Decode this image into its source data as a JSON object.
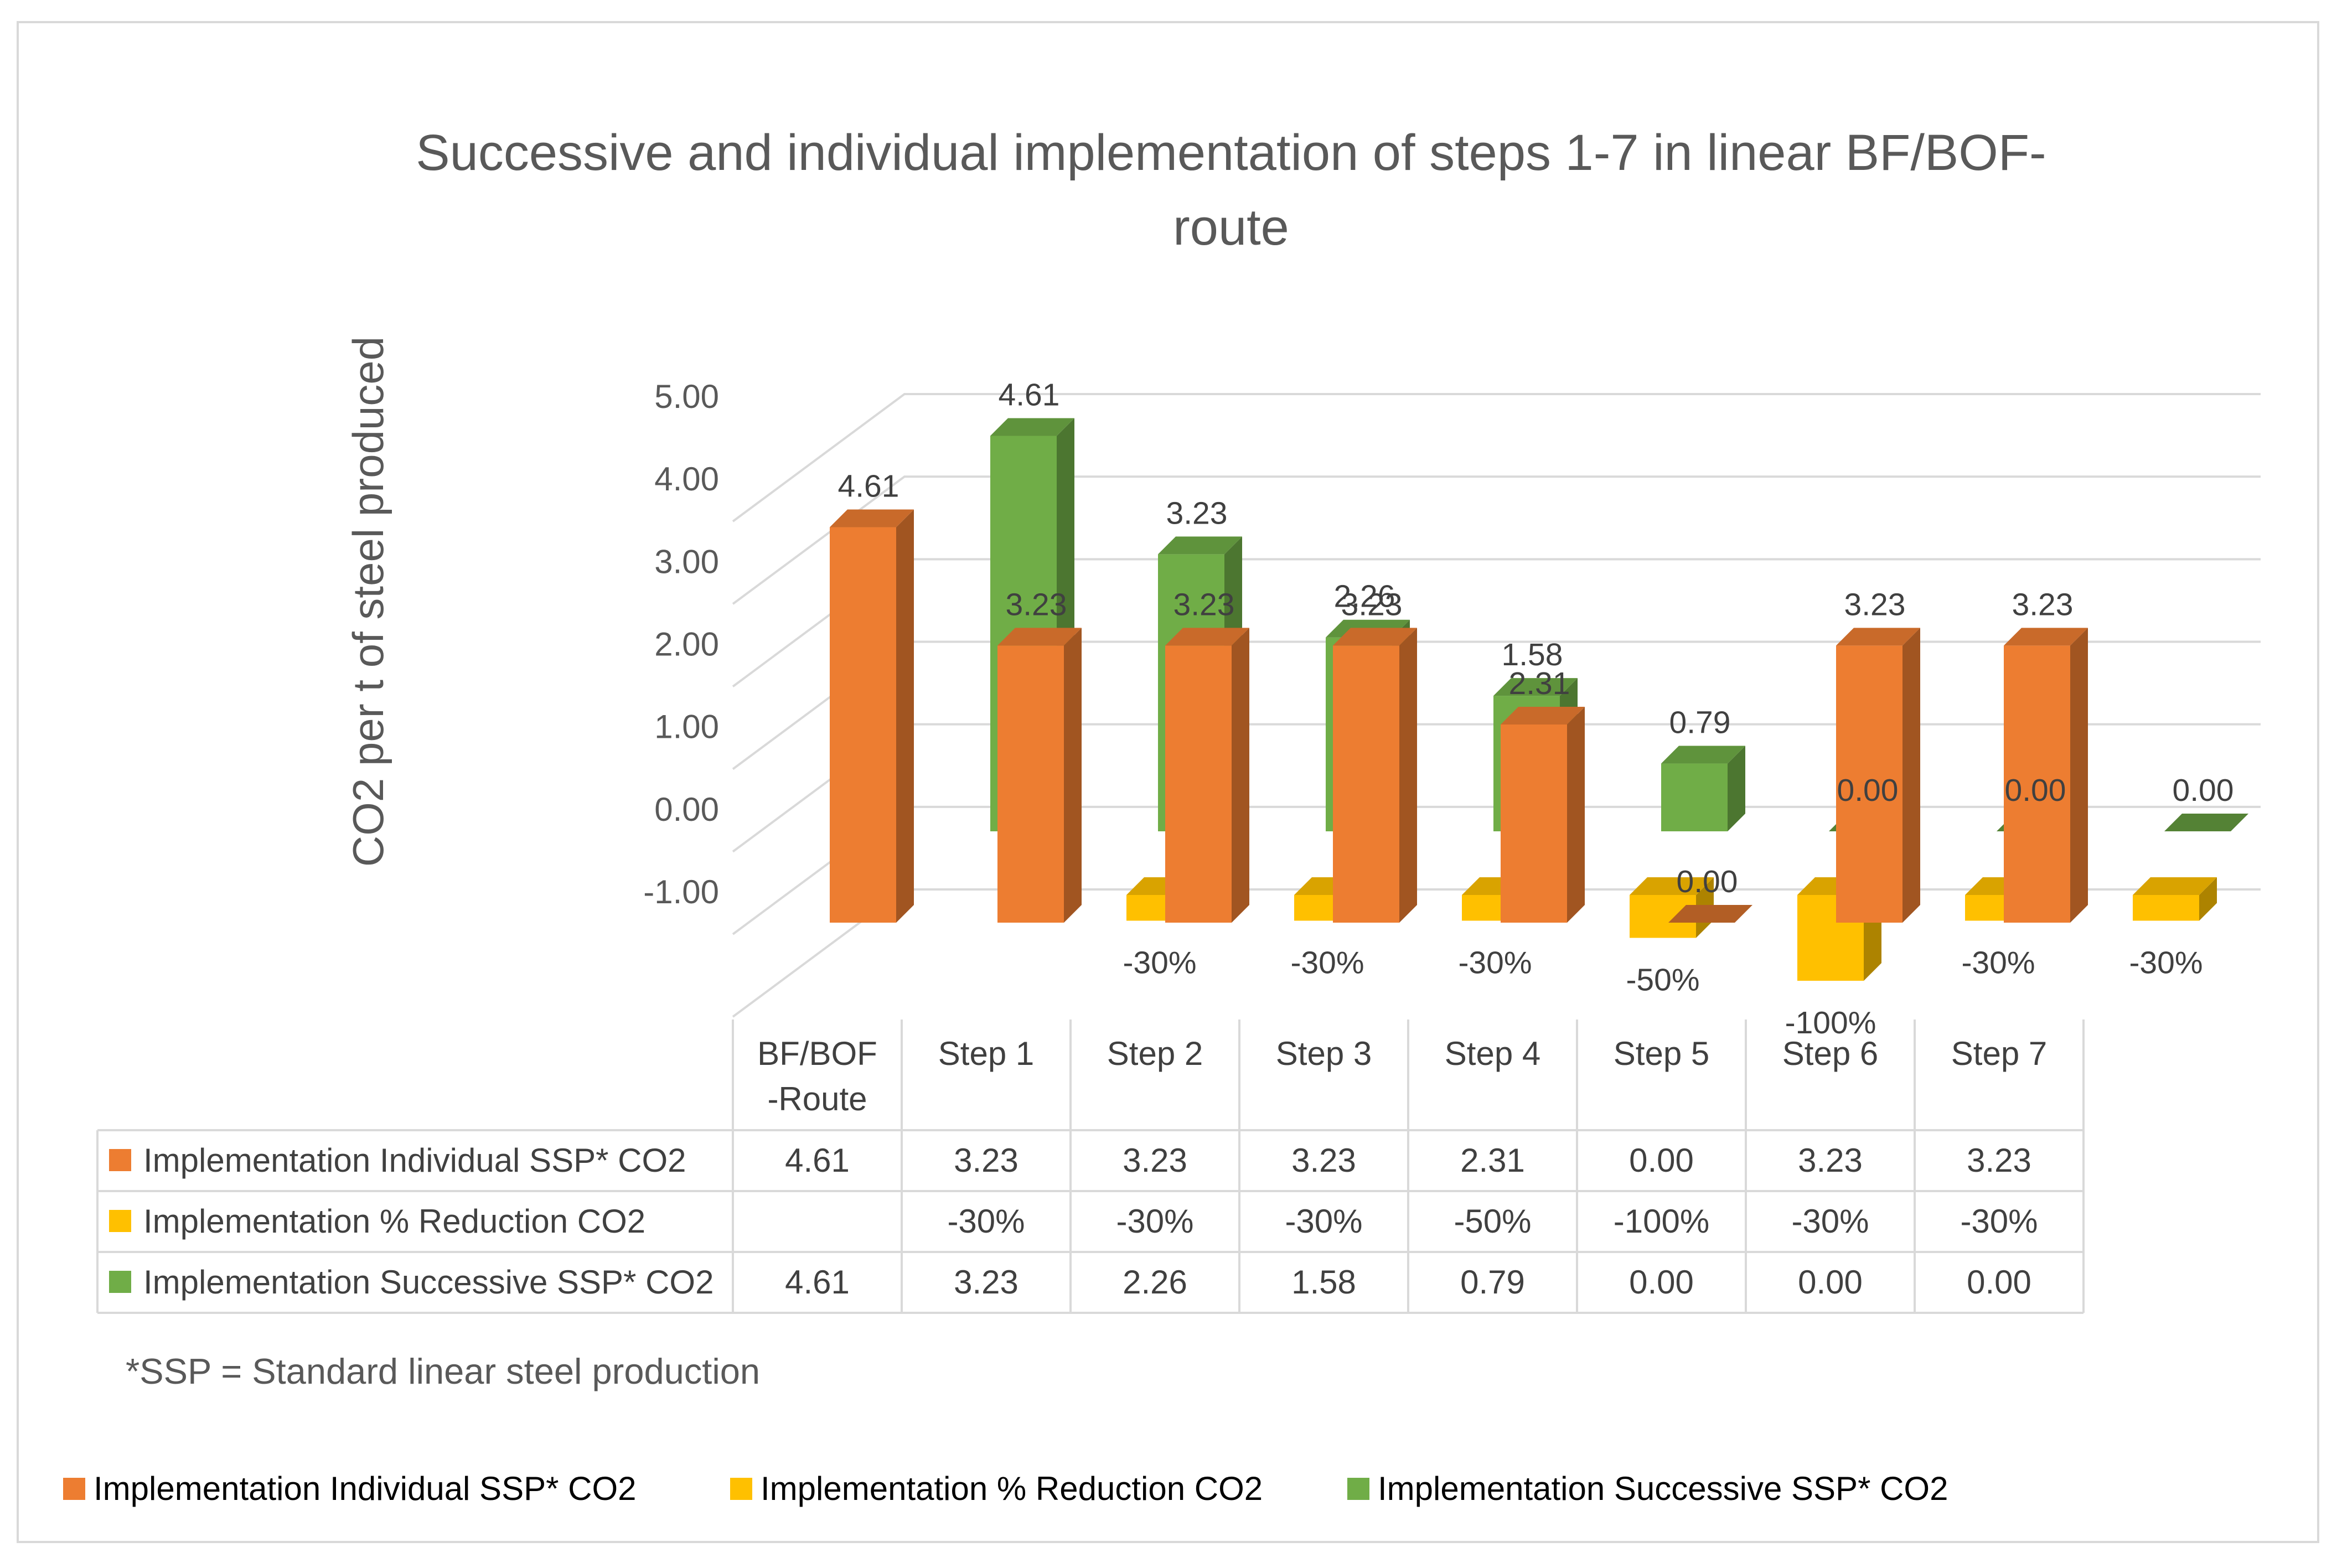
{
  "chart_data": {
    "type": "bar",
    "title_line1": "Successive and individual implementation of steps 1-7 in linear BF/BOF-",
    "title_line2": "route",
    "ylabel": "CO2 per t of steel produced",
    "ylim": [
      -1,
      5
    ],
    "yticks": [
      "5.00",
      "4.00",
      "3.00",
      "2.00",
      "1.00",
      "0.00",
      "-1.00"
    ],
    "categories": [
      "BF/BOF -Route",
      "Step 1",
      "Step 2",
      "Step 3",
      "Step 4",
      "Step 5",
      "Step 6",
      "Step 7"
    ],
    "category_lines": [
      [
        "BF/BOF",
        "-Route"
      ],
      [
        "Step 1"
      ],
      [
        "Step 2"
      ],
      [
        "Step 3"
      ],
      [
        "Step 4"
      ],
      [
        "Step 5"
      ],
      [
        "Step 6"
      ],
      [
        "Step 7"
      ]
    ],
    "series": [
      {
        "name": "Implementation Individual  SSP* CO2",
        "color": "#ED7D31",
        "values": [
          4.61,
          3.23,
          3.23,
          3.23,
          2.31,
          0.0,
          3.23,
          3.23
        ],
        "labels": [
          "4.61",
          "3.23",
          "3.23",
          "3.23",
          "2.31",
          "0.00",
          "3.23",
          "3.23"
        ]
      },
      {
        "name": "Implementation % Reduction  CO2",
        "color": "#FFC000",
        "values": [
          null,
          -0.3,
          -0.3,
          -0.3,
          -0.5,
          -1.0,
          -0.3,
          -0.3
        ],
        "labels": [
          "",
          "-30%",
          "-30%",
          "-30%",
          "-50%",
          "-100%",
          "-30%",
          "-30%"
        ]
      },
      {
        "name": "Implementation Successive  SSP* CO2",
        "color": "#70AD47",
        "values": [
          4.61,
          3.23,
          2.26,
          1.58,
          0.79,
          0.0,
          0.0,
          0.0
        ],
        "labels": [
          "4.61",
          "3.23",
          "2.26",
          "1.58",
          "0.79",
          "0.00",
          "0.00",
          "0.00"
        ]
      }
    ],
    "footnote": "*SSP = Standard linear steel production",
    "legend_position": "bottom"
  }
}
